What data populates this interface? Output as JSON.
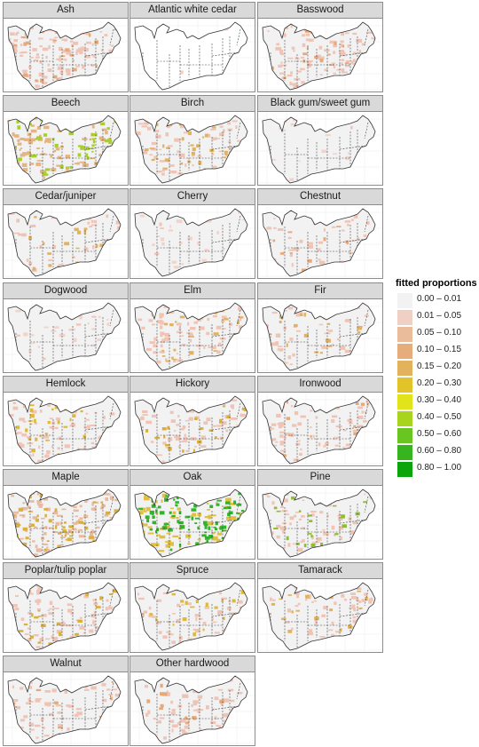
{
  "panels": [
    {
      "title": "Ash",
      "fill": "#efc4b5",
      "density": 0.55,
      "hot": "#e8a878",
      "hot_density": 0.1
    },
    {
      "title": "Atlantic white cedar",
      "fill": "#ffffff",
      "density": 0.0,
      "hot": "#f0cfc4",
      "hot_density": 0.01
    },
    {
      "title": "Basswood",
      "fill": "#efc4b5",
      "density": 0.5,
      "hot": "#e8a878",
      "hot_density": 0.08
    },
    {
      "title": "Beech",
      "fill": "#e5b480",
      "density": 0.4,
      "hot": "#a8cf2a",
      "hot_density": 0.22
    },
    {
      "title": "Birch",
      "fill": "#efc4b5",
      "density": 0.35,
      "hot": "#e3b25c",
      "hot_density": 0.15
    },
    {
      "title": "Black gum/sweet gum",
      "fill": "#f0d4cc",
      "density": 0.08,
      "hot": "#efc4b5",
      "hot_density": 0.02
    },
    {
      "title": "Cedar/juniper",
      "fill": "#efc4b5",
      "density": 0.18,
      "hot": "#e3b25c",
      "hot_density": 0.08
    },
    {
      "title": "Cherry",
      "fill": "#f0d4cc",
      "density": 0.12,
      "hot": "#efc4b5",
      "hot_density": 0.03
    },
    {
      "title": "Chestnut",
      "fill": "#efc4b5",
      "density": 0.2,
      "hot": "#e8a878",
      "hot_density": 0.06
    },
    {
      "title": "Dogwood",
      "fill": "#f0d4cc",
      "density": 0.12,
      "hot": "#efc4b5",
      "hot_density": 0.03
    },
    {
      "title": "Elm",
      "fill": "#efc4b5",
      "density": 0.45,
      "hot": "#e3b25c",
      "hot_density": 0.1
    },
    {
      "title": "Fir",
      "fill": "#efc4b5",
      "density": 0.25,
      "hot": "#e3b25c",
      "hot_density": 0.08
    },
    {
      "title": "Hemlock",
      "fill": "#efc4b5",
      "density": 0.35,
      "hot": "#e0b83a",
      "hot_density": 0.15
    },
    {
      "title": "Hickory",
      "fill": "#efc4b5",
      "density": 0.35,
      "hot": "#d9b03a",
      "hot_density": 0.12
    },
    {
      "title": "Ironwood",
      "fill": "#efc4b5",
      "density": 0.4,
      "hot": "#e8a878",
      "hot_density": 0.05
    },
    {
      "title": "Maple",
      "fill": "#e9b9a0",
      "density": 0.6,
      "hot": "#d9b03a",
      "hot_density": 0.2
    },
    {
      "title": "Oak",
      "fill": "#e0c040",
      "density": 0.45,
      "hot": "#2fb52a",
      "hot_density": 0.42
    },
    {
      "title": "Pine",
      "fill": "#efc4b5",
      "density": 0.35,
      "hot": "#8fbf30",
      "hot_density": 0.12
    },
    {
      "title": "Poplar/tulip poplar",
      "fill": "#efc4b5",
      "density": 0.35,
      "hot": "#d9b03a",
      "hot_density": 0.1
    },
    {
      "title": "Spruce",
      "fill": "#efc4b5",
      "density": 0.3,
      "hot": "#e0b83a",
      "hot_density": 0.12
    },
    {
      "title": "Tamarack",
      "fill": "#efc4b5",
      "density": 0.3,
      "hot": "#e3b25c",
      "hot_density": 0.06
    },
    {
      "title": "Walnut",
      "fill": "#efc4b5",
      "density": 0.3,
      "hot": "#e8a878",
      "hot_density": 0.04
    },
    {
      "title": "Other hardwood",
      "fill": "#efc4b5",
      "density": 0.4,
      "hot": "#e8a878",
      "hot_density": 0.06
    }
  ],
  "legend": {
    "title": "fitted proportions",
    "items": [
      {
        "label": "0.00 – 0.01",
        "color": "#f2f2f2"
      },
      {
        "label": "0.01 – 0.05",
        "color": "#f0cfc4"
      },
      {
        "label": "0.05 – 0.10",
        "color": "#ebbc9c"
      },
      {
        "label": "0.10 – 0.15",
        "color": "#e6ad7a"
      },
      {
        "label": "0.15 – 0.20",
        "color": "#e3b25c"
      },
      {
        "label": "0.20 – 0.30",
        "color": "#e3c32a"
      },
      {
        "label": "0.30 – 0.40",
        "color": "#e1e41a"
      },
      {
        "label": "0.40 – 0.50",
        "color": "#a8d41e"
      },
      {
        "label": "0.50 – 0.60",
        "color": "#69c51f"
      },
      {
        "label": "0.60 – 0.80",
        "color": "#37b51e"
      },
      {
        "label": "0.80 – 1.00",
        "color": "#0aa50a"
      }
    ]
  }
}
